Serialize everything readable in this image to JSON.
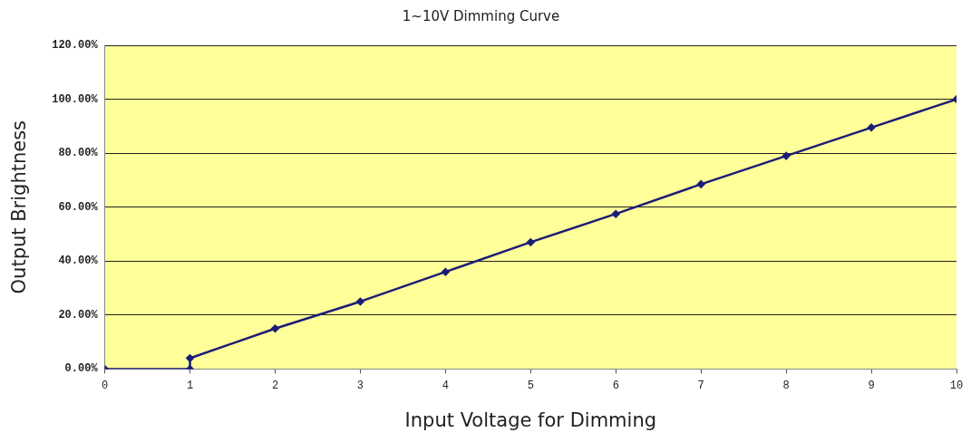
{
  "chart_data": {
    "type": "line",
    "title": "1~10V Dimming Curve",
    "xlabel": "Input Voltage for Dimming",
    "ylabel": "Output Brightness",
    "x": [
      0,
      1,
      1,
      2,
      3,
      4,
      5,
      6,
      7,
      8,
      9,
      10
    ],
    "series": [
      {
        "color": "#1c1c78",
        "values": [
          0,
          0,
          4,
          15,
          25,
          36,
          47,
          57.5,
          68.5,
          79,
          89.5,
          100
        ]
      }
    ],
    "xlim": [
      0,
      10
    ],
    "xticks": [
      0,
      1,
      2,
      3,
      4,
      5,
      6,
      7,
      8,
      9,
      10
    ],
    "ylim": [
      0,
      120
    ],
    "yticks": [
      {
        "value": 0,
        "label": "0.00%"
      },
      {
        "value": 20,
        "label": "20.00%"
      },
      {
        "value": 40,
        "label": "40.00%"
      },
      {
        "value": 60,
        "label": "60.00%"
      },
      {
        "value": 80,
        "label": "80.00%"
      },
      {
        "value": 100,
        "label": "100.00%"
      },
      {
        "value": 120,
        "label": "120.00%"
      }
    ],
    "grid": "y",
    "legend": false,
    "marker": "diamond",
    "line_style": "solid"
  }
}
